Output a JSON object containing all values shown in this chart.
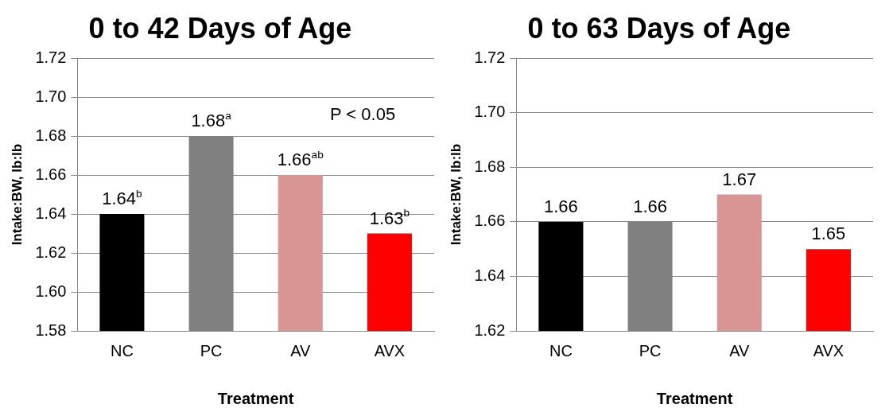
{
  "chart_data": [
    {
      "type": "bar",
      "title": "0 to 42 Days of Age",
      "xlabel": "Treatment",
      "ylabel": "Intake:BW, lb:lb",
      "categories": [
        "NC",
        "PC",
        "AV",
        "AVX"
      ],
      "series": [
        {
          "colors": [
            "#000000",
            "#808080",
            "#d99594",
            "#ff0000"
          ],
          "values": [
            1.64,
            1.68,
            1.66,
            1.63
          ],
          "value_labels": [
            "1.64$^{b}$",
            "1.68$^{a}$",
            "1.66$^{ab}$",
            "1.63$^{b}$"
          ]
        }
      ],
      "ylim": [
        1.58,
        1.72
      ],
      "yticks": [
        {
          "value": 1.58,
          "label": "1.58"
        },
        {
          "value": 1.6,
          "label": "1.60"
        },
        {
          "value": 1.62,
          "label": "1.62"
        },
        {
          "value": 1.64,
          "label": "1.64"
        },
        {
          "value": 1.66,
          "label": "1.66"
        },
        {
          "value": 1.68,
          "label": "1.68"
        },
        {
          "value": 1.7,
          "label": "1.70"
        },
        {
          "value": 1.72,
          "label": "1.72"
        }
      ],
      "grid": "y",
      "legend": false,
      "annotations": [
        "P < 0.05"
      ]
    },
    {
      "type": "bar",
      "title": "0 to 63 Days of Age",
      "xlabel": "Treatment",
      "ylabel": "Intake:BW, lb:lb",
      "categories": [
        "NC",
        "PC",
        "AV",
        "AVX"
      ],
      "series": [
        {
          "colors": [
            "#000000",
            "#808080",
            "#d99594",
            "#ff0000"
          ],
          "values": [
            1.66,
            1.66,
            1.67,
            1.65
          ],
          "value_labels": [
            "1.66",
            "1.66",
            "1.67",
            "1.65"
          ]
        }
      ],
      "ylim": [
        1.62,
        1.72
      ],
      "yticks": [
        {
          "value": 1.62,
          "label": "1.62"
        },
        {
          "value": 1.64,
          "label": "1.64"
        },
        {
          "value": 1.66,
          "label": "1.66"
        },
        {
          "value": 1.68,
          "label": "1.68"
        },
        {
          "value": 1.7,
          "label": "1.70"
        },
        {
          "value": 1.72,
          "label": "1.72"
        }
      ],
      "grid": "y",
      "legend": false
    }
  ]
}
